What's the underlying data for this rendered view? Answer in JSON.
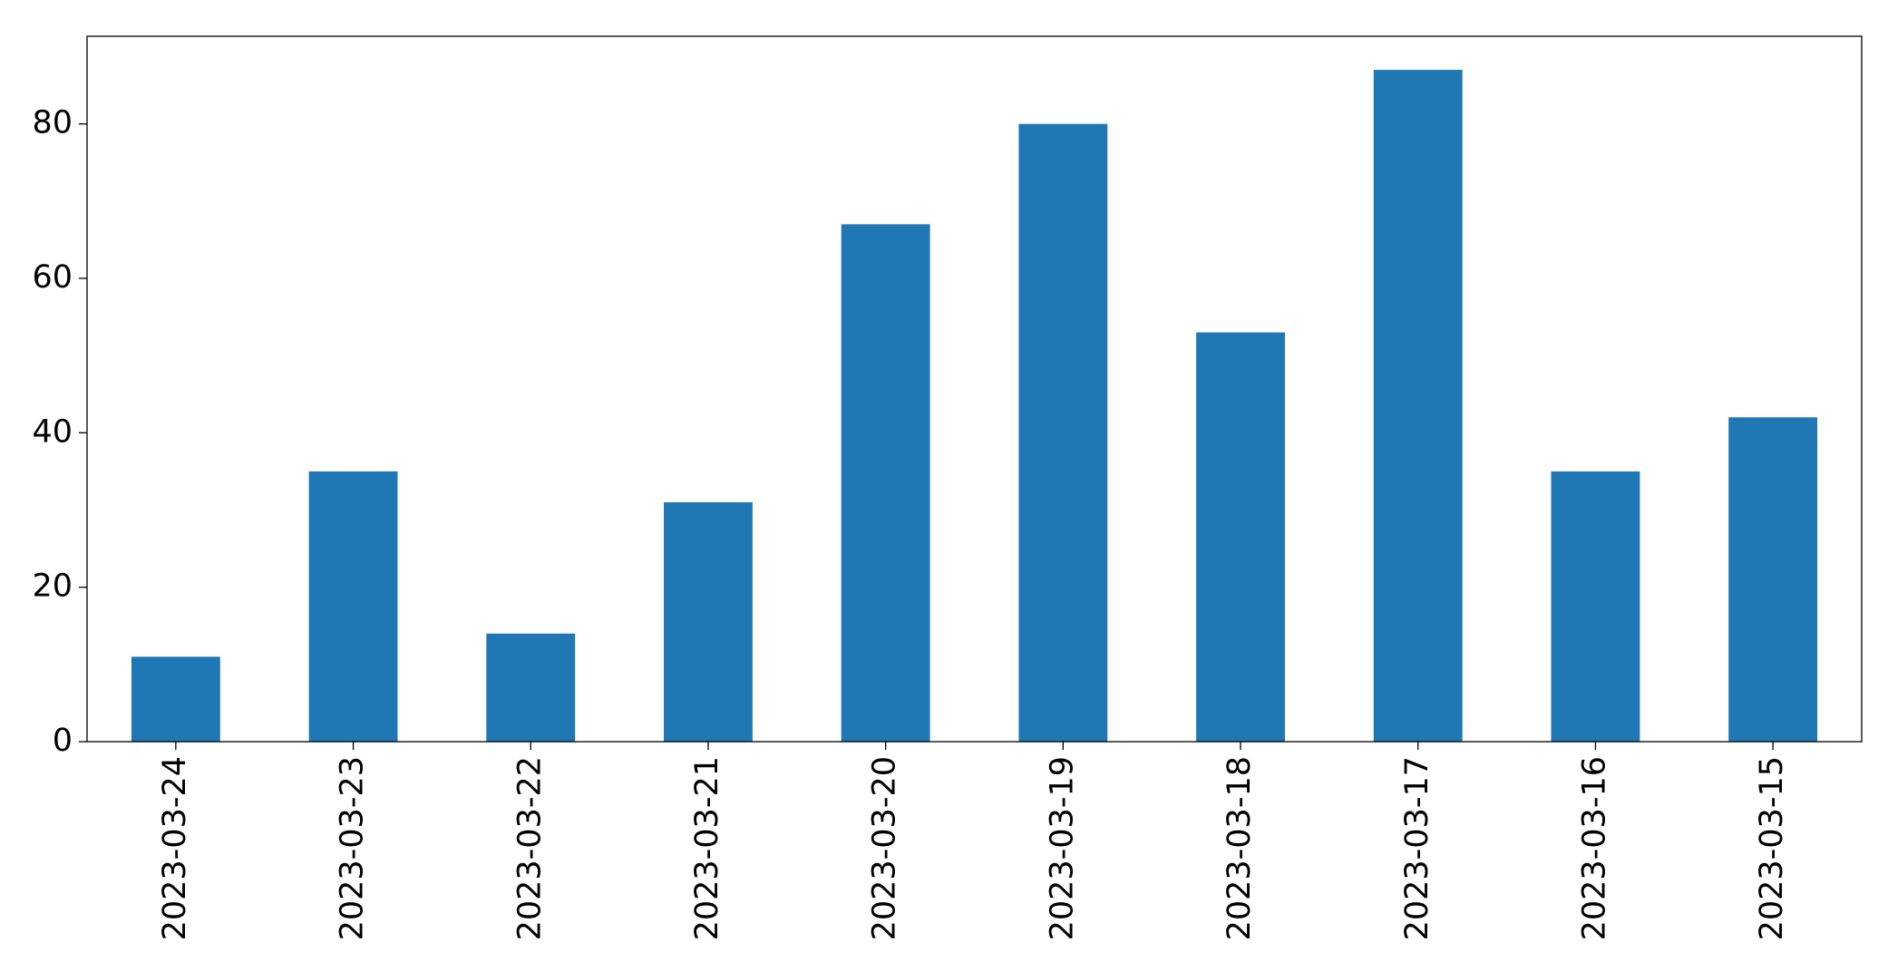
{
  "chart_data": {
    "type": "bar",
    "categories": [
      "2023-03-24",
      "2023-03-23",
      "2023-03-22",
      "2023-03-21",
      "2023-03-20",
      "2023-03-19",
      "2023-03-18",
      "2023-03-17",
      "2023-03-16",
      "2023-03-15"
    ],
    "values": [
      11,
      35,
      14,
      31,
      67,
      80,
      53,
      87,
      35,
      42
    ],
    "color": "#1f77b4",
    "ylim": [
      0,
      91.35
    ],
    "yticks": [
      0,
      20,
      40,
      60,
      80
    ],
    "grid": false
  }
}
